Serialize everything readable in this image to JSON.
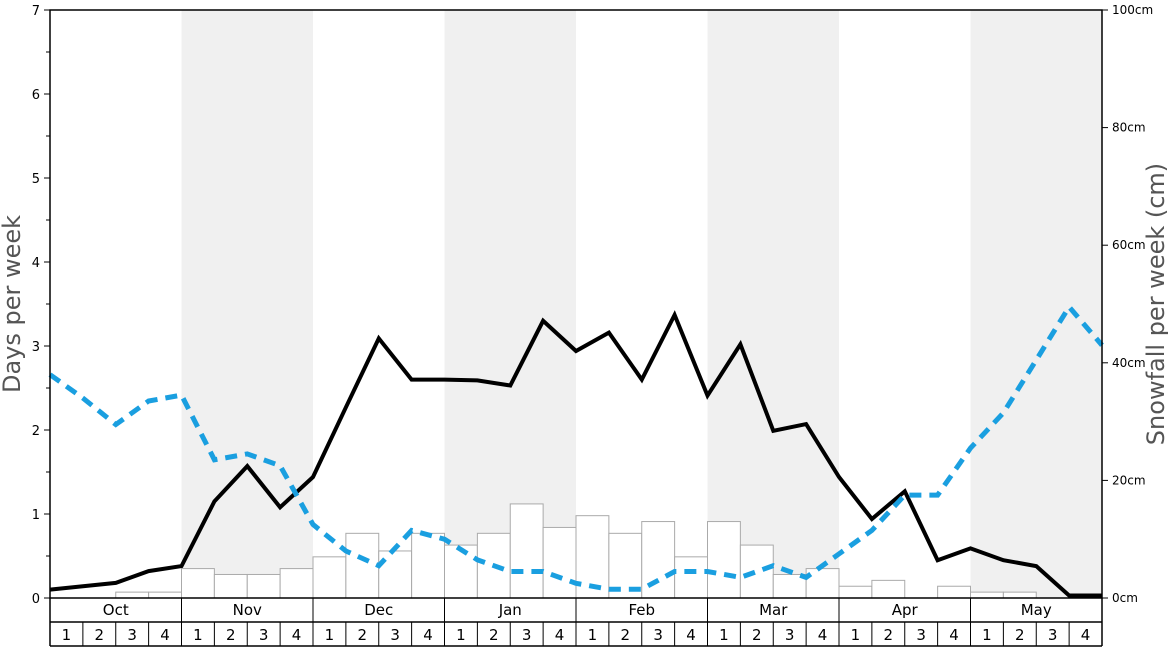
{
  "chart_data": {
    "type": "bar",
    "ylabel_left": "Days per week",
    "ylabel_right": "Snowfall per week (cm)",
    "ylim_left": [
      0,
      7
    ],
    "ylim_right": [
      0,
      100
    ],
    "left_ticks": [
      "0",
      "1",
      "2",
      "3",
      "4",
      "5",
      "6",
      "7"
    ],
    "right_ticks": [
      "0cm",
      "20cm",
      "40cm",
      "60cm",
      "80cm",
      "100cm"
    ],
    "months": [
      "Oct",
      "Nov",
      "Dec",
      "Jan",
      "Feb",
      "Mar",
      "Apr",
      "May"
    ],
    "weeks": [
      "1",
      "2",
      "3",
      "4"
    ],
    "shaded_months": [
      "Nov",
      "Jan",
      "Mar",
      "May"
    ],
    "colors": {
      "bar_fill": "#ffffff",
      "bar_stroke": "#aaaaaa",
      "days_line": "#000000",
      "dashed_line": "#1a9fe0",
      "shade": "#f0f0f0"
    },
    "series": [
      {
        "kind": "bar",
        "axis": "left",
        "values": [
          0,
          0,
          0.07,
          0.07,
          0.35,
          0.28,
          0.28,
          0.35,
          0.49,
          0.77,
          0.56,
          0.77,
          0.63,
          0.77,
          1.12,
          0.84,
          0.98,
          0.77,
          0.91,
          0.49,
          0.91,
          0.63,
          0.28,
          0.35,
          0.14,
          0.21,
          0,
          0.14,
          0.07,
          0.07,
          0,
          0
        ]
      },
      {
        "kind": "line",
        "axis": "left",
        "style": "solid",
        "values": [
          0.1,
          0.14,
          0.18,
          0.32,
          0.38,
          1.15,
          1.57,
          1.08,
          1.44,
          2.27,
          3.09,
          2.6,
          2.6,
          2.59,
          2.53,
          3.3,
          2.94,
          3.16,
          2.6,
          3.37,
          2.41,
          3.02,
          1.99,
          2.07,
          1.44,
          0.94,
          1.27,
          0.45,
          0.59,
          0.45,
          0.38,
          0.03,
          0.03
        ]
      },
      {
        "kind": "line",
        "axis": "right",
        "style": "dashed",
        "values": [
          38,
          34,
          29.5,
          33.5,
          34.5,
          23.5,
          24.5,
          22.5,
          12.5,
          8,
          5.5,
          11.5,
          10,
          6.5,
          4.5,
          4.5,
          2.5,
          1.5,
          1.5,
          4.5,
          4.5,
          3.5,
          5.5,
          3.5,
          7.5,
          11.5,
          17.5,
          17.5,
          25.5,
          31.5,
          40.5,
          49.5,
          43
        ]
      }
    ]
  }
}
